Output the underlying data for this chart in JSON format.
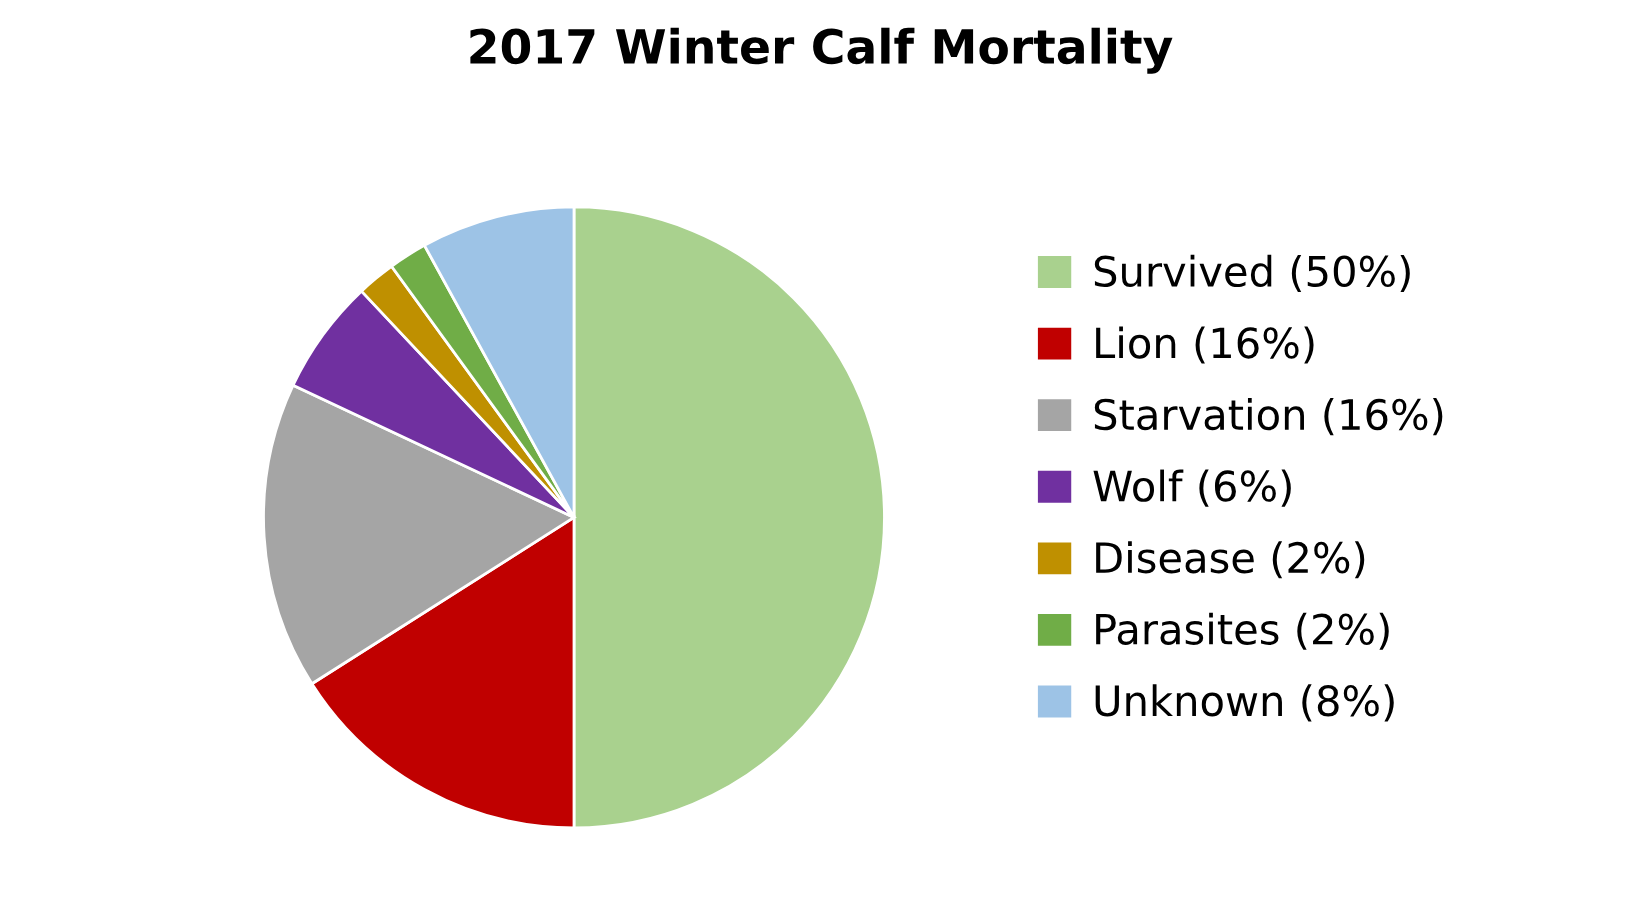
{
  "chart_data": {
    "type": "pie",
    "title": "2017 Winter Calf Mortality",
    "categories": [
      "Survived (50%)",
      "Lion (16%)",
      "Starvation (16%)",
      "Wolf (6%)",
      "Disease (2%)",
      "Parasites (2%)",
      "Unknown (8%)"
    ],
    "values": [
      50,
      16,
      16,
      6,
      2,
      2,
      8
    ],
    "colors": [
      "#a9d18e",
      "#c00000",
      "#a5a5a5",
      "#7030a0",
      "#bf9000",
      "#70ad47",
      "#9dc3e6"
    ],
    "legend": "right"
  }
}
